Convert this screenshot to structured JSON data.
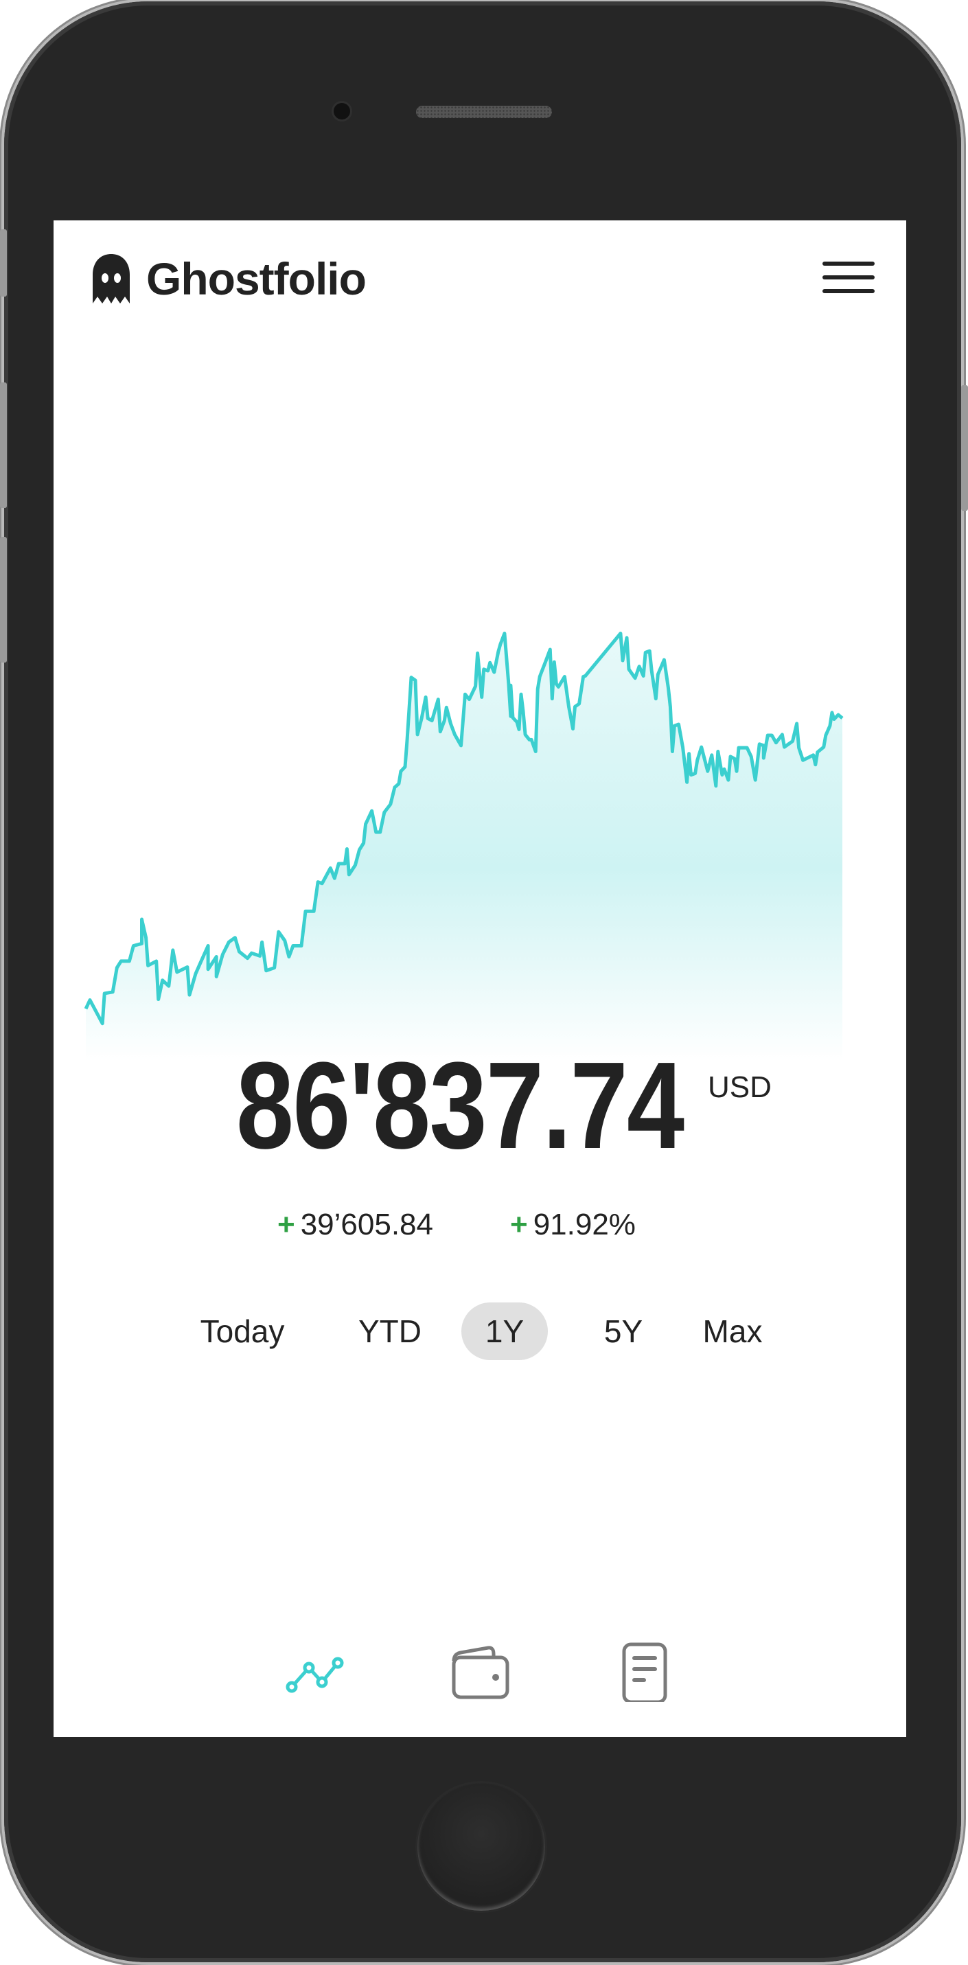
{
  "app": {
    "name": "Ghostfolio",
    "logo_icon": "ghost-icon",
    "menu_icon": "hamburger-menu-icon"
  },
  "portfolio": {
    "value": "86'837.74",
    "currency": "USD",
    "change_sign": "+",
    "change_absolute": "39’605.84",
    "change_percent": "91.92%"
  },
  "colors": {
    "accent": "#3bcfcf",
    "positive": "#2ea043",
    "text": "#222222",
    "inactive_icon": "#7a7a7a",
    "active_range_bg": "#e0e0e0"
  },
  "ranges": [
    {
      "label": "Today",
      "active": false
    },
    {
      "label": "YTD",
      "active": false
    },
    {
      "label": "1Y",
      "active": true
    },
    {
      "label": "5Y",
      "active": false
    },
    {
      "label": "Max",
      "active": false
    }
  ],
  "bottom_nav": [
    {
      "icon": "line-chart-icon",
      "active": true
    },
    {
      "icon": "wallet-icon",
      "active": false
    },
    {
      "icon": "document-icon",
      "active": false
    }
  ],
  "chart_data": {
    "type": "area",
    "title": "",
    "xlabel": "",
    "ylabel": "",
    "axes_visible": false,
    "grid": false,
    "x_unit": "days (1Y range)",
    "series": [
      {
        "points": [
          [
            0,
            47200
          ],
          [
            2,
            48400
          ],
          [
            8,
            45200
          ],
          [
            9,
            49300
          ],
          [
            13,
            49500
          ],
          [
            15,
            52800
          ],
          [
            17,
            53700
          ],
          [
            21,
            53700
          ],
          [
            23,
            55800
          ],
          [
            27,
            56100
          ],
          [
            27,
            59400
          ],
          [
            29,
            56900
          ],
          [
            30,
            53100
          ],
          [
            34,
            53700
          ],
          [
            35,
            48500
          ],
          [
            37,
            51100
          ],
          [
            40,
            50300
          ],
          [
            42,
            55200
          ],
          [
            44,
            52200
          ],
          [
            49,
            52900
          ],
          [
            50,
            49100
          ],
          [
            53,
            52000
          ],
          [
            55,
            53300
          ],
          [
            59,
            55800
          ],
          [
            59,
            52600
          ],
          [
            63,
            54300
          ],
          [
            63,
            51600
          ],
          [
            66,
            54600
          ],
          [
            69,
            56300
          ],
          [
            72,
            56900
          ],
          [
            74,
            55000
          ],
          [
            78,
            54100
          ],
          [
            80,
            54800
          ],
          [
            84,
            54400
          ],
          [
            85,
            56300
          ],
          [
            87,
            52400
          ],
          [
            91,
            52800
          ],
          [
            93,
            57700
          ],
          [
            96,
            56500
          ],
          [
            98,
            54300
          ],
          [
            100,
            55800
          ],
          [
            104,
            55800
          ],
          [
            106,
            60500
          ],
          [
            110,
            60500
          ],
          [
            112,
            64500
          ],
          [
            114,
            64300
          ],
          [
            118,
            66400
          ],
          [
            120,
            65000
          ],
          [
            122,
            67000
          ],
          [
            125,
            67000
          ],
          [
            126,
            69000
          ],
          [
            127,
            65500
          ],
          [
            130,
            66800
          ],
          [
            132,
            68900
          ],
          [
            134,
            69800
          ],
          [
            135,
            72400
          ],
          [
            138,
            74200
          ],
          [
            140,
            71300
          ],
          [
            142,
            71300
          ],
          [
            144,
            74000
          ],
          [
            147,
            75100
          ],
          [
            149,
            77400
          ],
          [
            151,
            77900
          ],
          [
            152,
            79600
          ],
          [
            154,
            80200
          ],
          [
            155,
            83800
          ],
          [
            157,
            92400
          ],
          [
            159,
            92000
          ],
          [
            160,
            84600
          ],
          [
            162,
            86800
          ],
          [
            164,
            89700
          ],
          [
            165,
            86800
          ],
          [
            167,
            86500
          ],
          [
            170,
            89400
          ],
          [
            171,
            85000
          ],
          [
            173,
            86500
          ],
          [
            174,
            88300
          ],
          [
            176,
            86100
          ],
          [
            178,
            84600
          ],
          [
            181,
            83100
          ],
          [
            183,
            90100
          ],
          [
            185,
            89400
          ],
          [
            188,
            91200
          ],
          [
            189,
            95700
          ],
          [
            191,
            89700
          ],
          [
            192,
            93500
          ],
          [
            194,
            93300
          ],
          [
            195,
            94400
          ],
          [
            197,
            93100
          ],
          [
            199,
            95900
          ],
          [
            200,
            96900
          ],
          [
            202,
            98400
          ],
          [
            204,
            91500
          ],
          [
            205,
            87100
          ],
          [
            205,
            91300
          ],
          [
            206,
            86900
          ],
          [
            208,
            86300
          ],
          [
            209,
            85300
          ],
          [
            210,
            90100
          ],
          [
            211,
            87800
          ],
          [
            212,
            84600
          ],
          [
            214,
            83900
          ],
          [
            215,
            83900
          ],
          [
            217,
            82300
          ],
          [
            218,
            90800
          ],
          [
            219,
            92500
          ],
          [
            222,
            94700
          ],
          [
            224,
            96200
          ],
          [
            225,
            89500
          ],
          [
            226,
            94500
          ],
          [
            227,
            91500
          ],
          [
            228,
            91100
          ],
          [
            231,
            92500
          ],
          [
            233,
            88400
          ],
          [
            235,
            85400
          ],
          [
            236,
            88400
          ],
          [
            238,
            88800
          ],
          [
            240,
            92500
          ],
          [
            241,
            92600
          ],
          [
            258,
            98400
          ],
          [
            259,
            94700
          ],
          [
            261,
            97800
          ],
          [
            262,
            93500
          ],
          [
            265,
            92300
          ],
          [
            267,
            93900
          ],
          [
            269,
            92600
          ],
          [
            270,
            95800
          ],
          [
            272,
            96000
          ],
          [
            273,
            93300
          ],
          [
            275,
            89500
          ],
          [
            276,
            92800
          ],
          [
            279,
            94800
          ],
          [
            281,
            91000
          ],
          [
            282,
            88400
          ],
          [
            283,
            82300
          ],
          [
            284,
            85800
          ],
          [
            286,
            86000
          ],
          [
            288,
            82900
          ],
          [
            290,
            78100
          ],
          [
            291,
            82000
          ],
          [
            292,
            79100
          ],
          [
            294,
            79300
          ],
          [
            295,
            81100
          ],
          [
            297,
            82900
          ],
          [
            300,
            79600
          ],
          [
            302,
            81800
          ],
          [
            304,
            77600
          ],
          [
            305,
            82300
          ],
          [
            307,
            79100
          ],
          [
            308,
            79900
          ],
          [
            310,
            78400
          ],
          [
            311,
            81600
          ],
          [
            313,
            81300
          ],
          [
            314,
            79600
          ],
          [
            315,
            82800
          ],
          [
            319,
            82800
          ],
          [
            321,
            81600
          ],
          [
            323,
            78400
          ],
          [
            325,
            83300
          ],
          [
            327,
            83100
          ],
          [
            327,
            81400
          ],
          [
            329,
            84500
          ],
          [
            331,
            84500
          ],
          [
            333,
            83500
          ],
          [
            336,
            84600
          ],
          [
            337,
            82900
          ],
          [
            340,
            83500
          ],
          [
            341,
            83700
          ],
          [
            343,
            86100
          ],
          [
            344,
            82800
          ],
          [
            346,
            81100
          ],
          [
            351,
            81800
          ],
          [
            352,
            80500
          ],
          [
            353,
            82200
          ],
          [
            356,
            82900
          ],
          [
            357,
            84500
          ],
          [
            359,
            85800
          ],
          [
            360,
            87600
          ],
          [
            361,
            86700
          ],
          [
            363,
            87300
          ],
          [
            365,
            86838
          ]
        ]
      }
    ]
  }
}
